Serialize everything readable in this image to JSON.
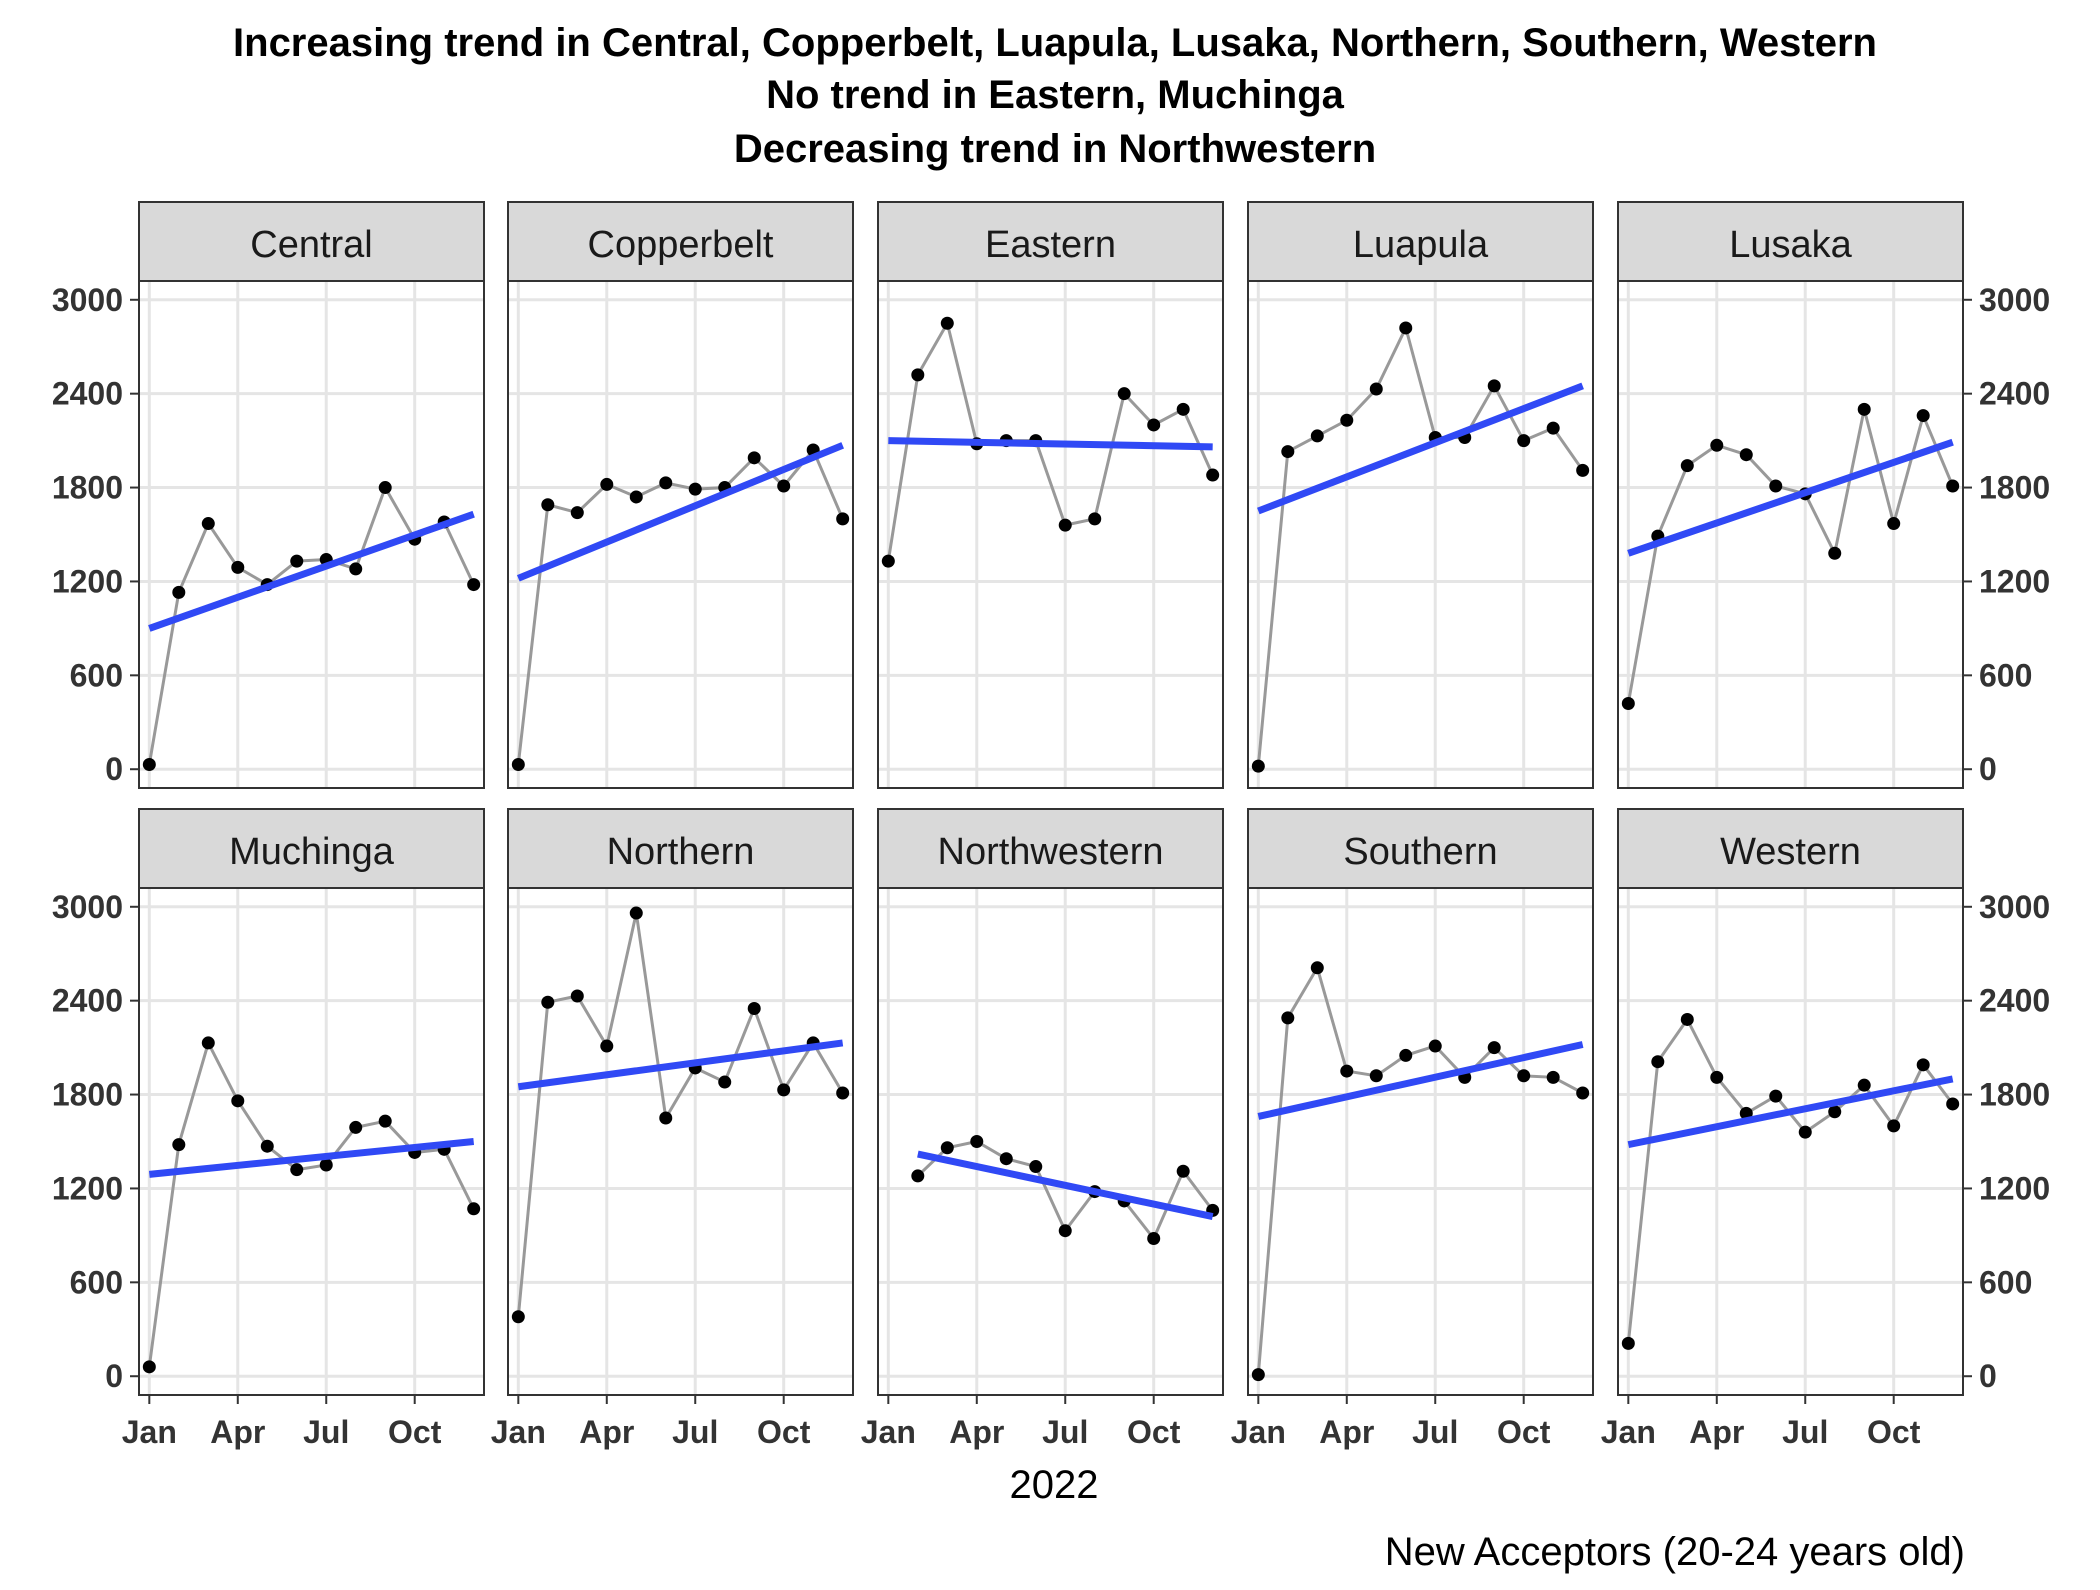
{
  "chart_data": {
    "type": "line",
    "title_lines": [
      "Increasing trend in Central, Copperbelt, Luapula, Lusaka, Northern, Southern, Western",
      "No trend in Eastern, Muchinga",
      "Decreasing trend in Northwestern"
    ],
    "xlabel": "2022",
    "ylabel": "New Acceptors (20-24 years old)",
    "x_tick_labels": [
      "Jan",
      "Apr",
      "Jul",
      "Oct"
    ],
    "x_tick_months": [
      1,
      4,
      7,
      10
    ],
    "y_ticks": [
      0,
      600,
      1200,
      1800,
      2400,
      3000
    ],
    "ylim": [
      -120,
      3120
    ],
    "xlim": [
      0.65,
      12.35
    ],
    "grid": true,
    "colors": {
      "series_line": "#999999",
      "points": "#000000",
      "trend": "#3049f5",
      "strip_bg": "#d9d9d9",
      "grid": "#e5e5e5"
    },
    "panels": [
      {
        "name": "Central",
        "values": [
          30,
          1130,
          1570,
          1290,
          1180,
          1330,
          1340,
          1280,
          1800,
          1470,
          1580,
          1180
        ],
        "trend": [
          900,
          1630
        ]
      },
      {
        "name": "Copperbelt",
        "values": [
          30,
          1690,
          1640,
          1820,
          1740,
          1830,
          1790,
          1800,
          1990,
          1810,
          2040,
          1600
        ],
        "trend": [
          1220,
          2070
        ]
      },
      {
        "name": "Eastern",
        "values": [
          1330,
          2520,
          2850,
          2080,
          2100,
          2100,
          1560,
          1600,
          2400,
          2200,
          2300,
          1880
        ],
        "trend": [
          2100,
          2060
        ]
      },
      {
        "name": "Luapula",
        "values": [
          20,
          2030,
          2130,
          2230,
          2430,
          2820,
          2120,
          2120,
          2450,
          2100,
          2180,
          1910
        ],
        "trend": [
          1650,
          2450
        ]
      },
      {
        "name": "Lusaka",
        "values": [
          420,
          1490,
          1940,
          2070,
          2010,
          1810,
          1760,
          1380,
          2300,
          1570,
          2260,
          1810
        ],
        "trend": [
          1380,
          2090
        ]
      },
      {
        "name": "Muchinga",
        "values": [
          60,
          1480,
          2130,
          1760,
          1470,
          1320,
          1350,
          1590,
          1630,
          1430,
          1450,
          1070
        ],
        "trend": [
          1290,
          1500
        ]
      },
      {
        "name": "Northern",
        "values": [
          380,
          2390,
          2430,
          2110,
          2960,
          1650,
          1970,
          1880,
          2350,
          1830,
          2130,
          1810
        ],
        "trend": [
          1850,
          2130
        ]
      },
      {
        "name": "Northwestern",
        "values": [
          null,
          1280,
          1460,
          1500,
          1390,
          1340,
          930,
          1180,
          1120,
          880,
          1310,
          1060
        ],
        "trend": [
          1420,
          1020
        ]
      },
      {
        "name": "Southern",
        "values": [
          10,
          2290,
          2610,
          1950,
          1920,
          2050,
          2110,
          1910,
          2100,
          1920,
          1910,
          1810
        ],
        "trend": [
          1660,
          2120
        ]
      },
      {
        "name": "Western",
        "values": [
          210,
          2010,
          2280,
          1910,
          1680,
          1790,
          1560,
          1690,
          1860,
          1600,
          1990,
          1740
        ],
        "trend": [
          1480,
          1900
        ]
      }
    ]
  }
}
